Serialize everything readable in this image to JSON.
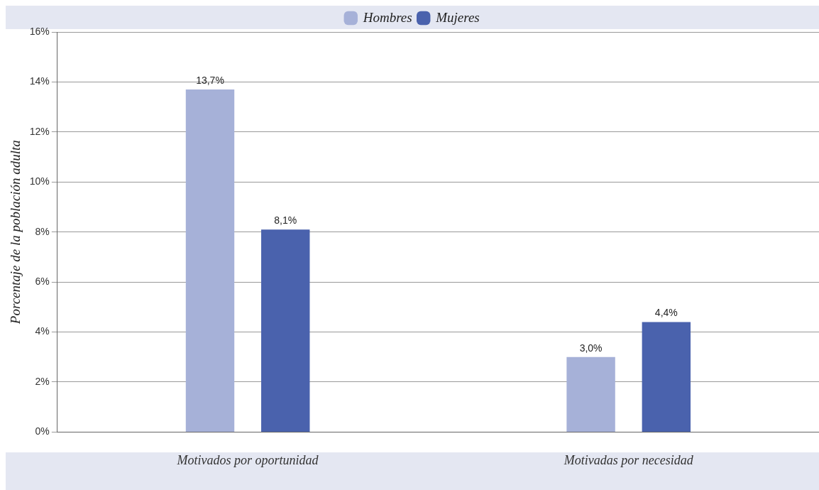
{
  "chart_data": {
    "type": "bar",
    "ylabel": "Porcentaje de la población adulta",
    "categories": [
      "Motivados por oportunidad",
      "Motivadas por necesidad"
    ],
    "series": [
      {
        "name": "Hombres",
        "color": "#a6b1d8",
        "values": [
          13.7,
          3.0
        ],
        "value_labels": [
          "13,7%",
          "3,0%"
        ]
      },
      {
        "name": "Mujeres",
        "color": "#4a62ad",
        "values": [
          8.1,
          4.4
        ],
        "value_labels": [
          "8,1%",
          "4,4%"
        ]
      }
    ],
    "ylim": [
      0,
      16
    ],
    "yticks": [
      {
        "value": 0,
        "label": "0%"
      },
      {
        "value": 2,
        "label": "2%"
      },
      {
        "value": 4,
        "label": "4%"
      },
      {
        "value": 6,
        "label": "6%"
      },
      {
        "value": 8,
        "label": "8%"
      },
      {
        "value": 10,
        "label": "10%"
      },
      {
        "value": 12,
        "label": "12%"
      },
      {
        "value": 14,
        "label": "14%"
      },
      {
        "value": 16,
        "label": "16%"
      }
    ],
    "grid": "y",
    "legend": "top"
  }
}
